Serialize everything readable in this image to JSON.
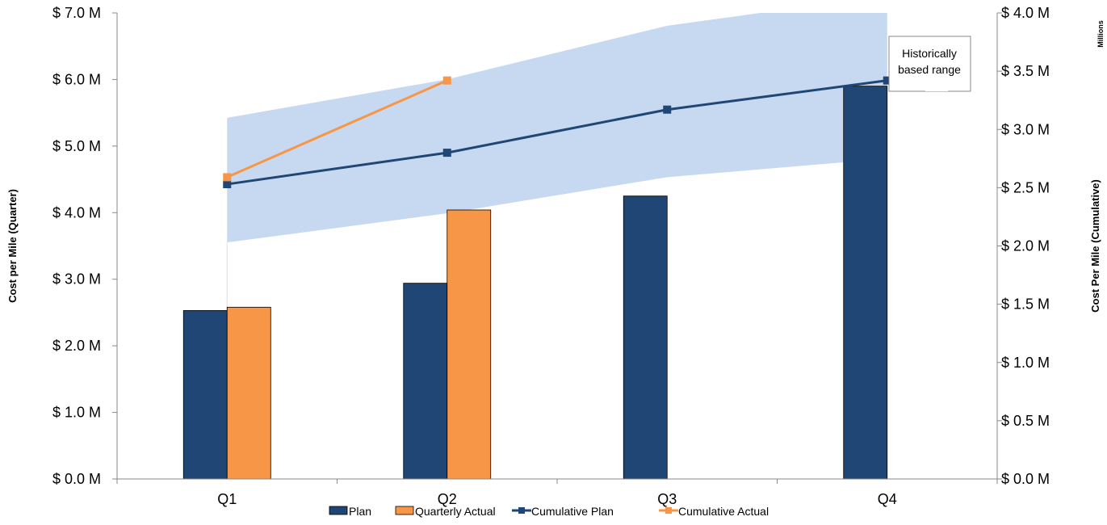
{
  "chart_data": {
    "type": "bar",
    "categories": [
      "Q1",
      "Q2",
      "Q3",
      "Q4"
    ],
    "y_left": {
      "label": "Cost per Mile (Quarter)",
      "ylim": [
        0,
        7
      ],
      "ticks": [
        0,
        1,
        2,
        3,
        4,
        5,
        6,
        7
      ],
      "tick_labels": [
        "$ 0.0 M",
        "$ 1.0 M",
        "$ 2.0 M",
        "$ 3.0 M",
        "$ 4.0 M",
        "$ 5.0 M",
        "$ 6.0 M",
        "$ 7.0 M"
      ]
    },
    "y_right": {
      "label": "Cost Per Mile (Cumulative)",
      "units_label": "Millions",
      "ylim": [
        0,
        4
      ],
      "ticks": [
        0,
        0.5,
        1,
        1.5,
        2,
        2.5,
        3,
        3.5,
        4
      ],
      "tick_labels": [
        "$ 0.0 M",
        "$ 0.5 M",
        "$ 1.0 M",
        "$ 1.5 M",
        "$ 2.0 M",
        "$ 2.5 M",
        "$ 3.0 M",
        "$ 3.5 M",
        "$ 4.0 M"
      ]
    },
    "series": [
      {
        "name": "Plan",
        "kind": "bar",
        "axis": "left",
        "color": "#1F4675",
        "values": [
          2.53,
          2.94,
          4.25,
          5.9
        ]
      },
      {
        "name": "Quarterly Actual",
        "kind": "bar",
        "axis": "left",
        "color": "#F79646",
        "values": [
          2.58,
          4.04,
          null,
          null
        ]
      },
      {
        "name": "Cumulative Plan",
        "kind": "line",
        "axis": "right",
        "color": "#1F4675",
        "values": [
          2.53,
          2.8,
          3.17,
          3.42
        ]
      },
      {
        "name": "Cumulative Actual",
        "kind": "line",
        "axis": "right",
        "color": "#F79646",
        "values": [
          2.59,
          3.42,
          null,
          null
        ]
      }
    ],
    "range_band": {
      "annotation": "Historically based range",
      "color": "#C6D9F1",
      "axis": "right",
      "upper": [
        3.1,
        3.43,
        3.89,
        4.15
      ],
      "lower": [
        2.03,
        2.28,
        2.59,
        2.75
      ]
    },
    "legend_position": "bottom",
    "grid": false
  }
}
